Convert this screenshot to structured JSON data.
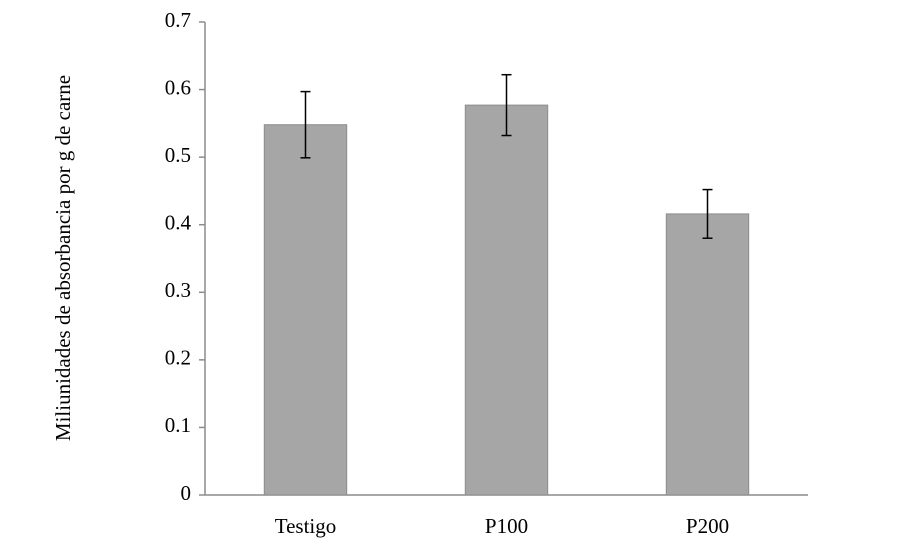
{
  "chart_data": {
    "type": "bar",
    "ylabel": "Miliunidades de absorbancia por g de carne",
    "categories": [
      "Testigo",
      "P100",
      "P200"
    ],
    "series": [
      {
        "color": "#a6a6a6",
        "values": [
          0.548,
          0.577,
          0.416
        ],
        "errors": [
          0.049,
          0.045,
          0.036
        ]
      }
    ],
    "ylim": [
      0,
      0.7
    ],
    "yticks": [
      0,
      0.1,
      0.2,
      0.3,
      0.4,
      0.5,
      0.6,
      0.7
    ]
  }
}
